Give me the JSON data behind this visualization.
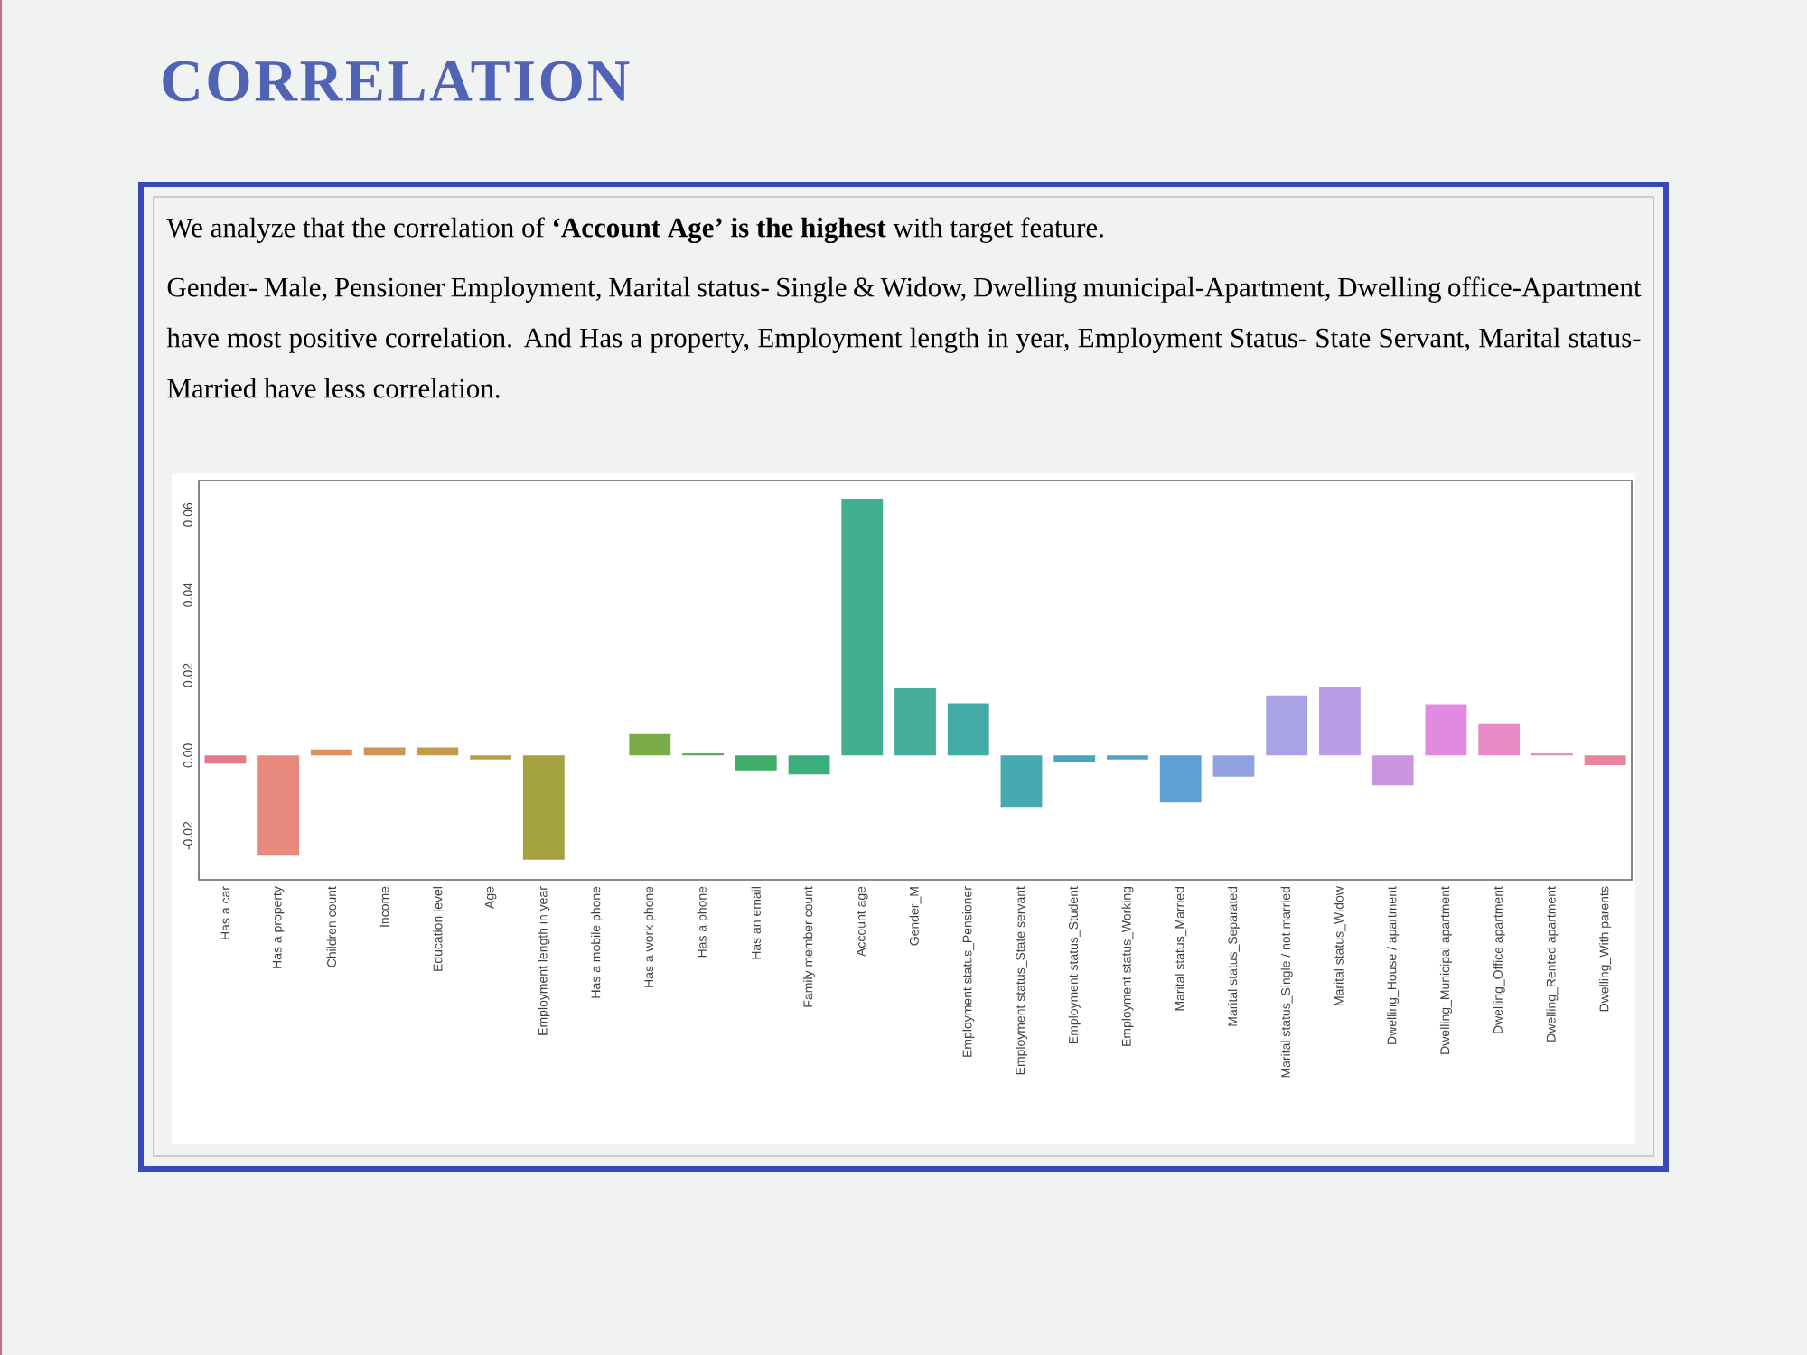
{
  "chart_data": {
    "type": "bar",
    "title": "CORRELATION",
    "annotations": [
      "We analyze that the correlation of **‘Account Age’ is the highest** with target feature.",
      "Gender- Male, Pensioner Employment, Marital status- Single & Widow, Dwelling municipal-Apartment, Dwelling office-Apartment have most positive correlation. And Has a property, Employment length in year, Employment Status- State Servant, Marital status- Married have less correlation."
    ],
    "categories": [
      "Has a car",
      "Has a property",
      "Children count",
      "Income",
      "Education level",
      "Age",
      "Employment length in year",
      "Has a mobile phone",
      "Has a work phone",
      "Has a phone",
      "Has an email",
      "Family member count",
      "Account age",
      "Gender_M",
      "Employment status_Pensioner",
      "Employment status_State servant",
      "Employment status_Student",
      "Employment status_Working",
      "Marital status_Married",
      "Marital status_Separated",
      "Marital status_Single / not married",
      "Marital status_Widow",
      "Dwelling_House / apartment",
      "Dwelling_Municipal apartment",
      "Dwelling_Office apartment",
      "Dwelling_Rented apartment",
      "Dwelling_With parents"
    ],
    "values": [
      -0.002,
      -0.025,
      0.0015,
      0.002,
      0.002,
      -0.001,
      -0.026,
      null,
      0.0055,
      0.0005,
      -0.0037,
      -0.0047,
      0.064,
      0.0167,
      0.013,
      -0.0128,
      -0.0017,
      -0.001,
      -0.0117,
      -0.0053,
      0.015,
      0.017,
      -0.0074,
      0.0128,
      0.008,
      0.0005,
      -0.0024
    ],
    "colors": [
      "#e8798a",
      "#e8897e",
      "#d99160",
      "#cf955a",
      "#c49a4f",
      "#b79f47",
      "#a3a23e",
      "#8fa640",
      "#7aab47",
      "#5eae58",
      "#3fae6a",
      "#3aae7d",
      "#41ae8f",
      "#44ad9c",
      "#42aba6",
      "#44a9b0",
      "#47a6ba",
      "#4ca3c6",
      "#5e9fd6",
      "#8ea3e0",
      "#a9a3e6",
      "#bb9de6",
      "#cc95e2",
      "#e08be0",
      "#e68bc6",
      "#e88fb0",
      "#e8859d"
    ],
    "ylim": [
      -0.031,
      0.0685
    ],
    "yticks": [
      {
        "value": -0.02,
        "label": "-0.02"
      },
      {
        "value": 0,
        "label": "0.00"
      },
      {
        "value": 0.02,
        "label": "0.02"
      },
      {
        "value": 0.04,
        "label": "0.04"
      },
      {
        "value": 0.06,
        "label": "0.06"
      }
    ]
  }
}
